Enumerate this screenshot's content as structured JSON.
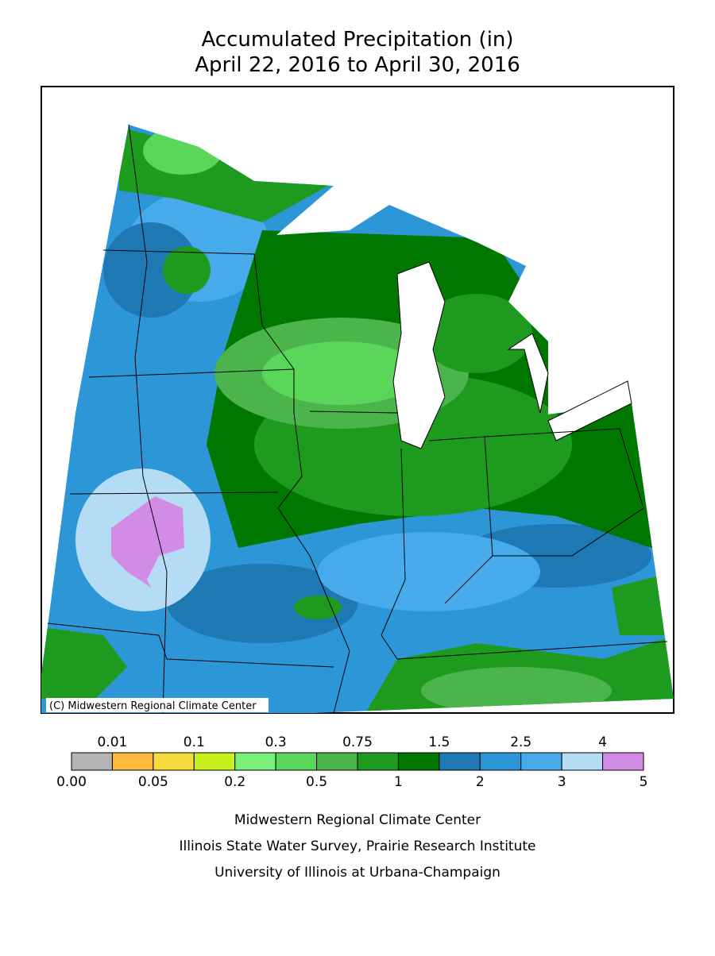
{
  "title": [
    "Accumulated Precipitation (in)",
    "April 22, 2016 to April 30, 2016"
  ],
  "map": {
    "copyright": "(C) Midwestern Regional Climate Center"
  },
  "legend": {
    "colors": [
      "#b4b4b4",
      "#ffb93c",
      "#f5dc3c",
      "#c8f01e",
      "#78f078",
      "#5ad75a",
      "#4bb44b",
      "#1e9b1e",
      "#007800",
      "#1e78b4",
      "#2d96d7",
      "#46aaeb",
      "#b4dcf5",
      "#d28ce6"
    ],
    "breaks": [
      {
        "value": 0,
        "label": "0.00"
      },
      0.01,
      0.05,
      0.1,
      0.2,
      0.3,
      0.5,
      0.75,
      1,
      1.5,
      2,
      2.5,
      3,
      4,
      5
    ]
  },
  "footer": [
    "Midwestern Regional Climate Center",
    "Illinois State Water Survey, Prairie Research Institute",
    "University of Illinois at Urbana-Champaign"
  ]
}
